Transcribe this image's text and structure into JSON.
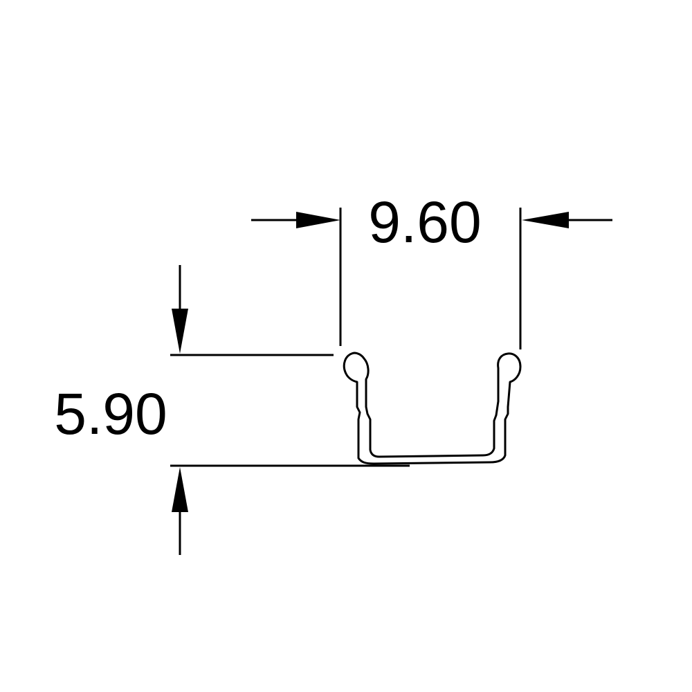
{
  "dimensions": {
    "width_label": "9.60",
    "height_label": "5.90"
  }
}
